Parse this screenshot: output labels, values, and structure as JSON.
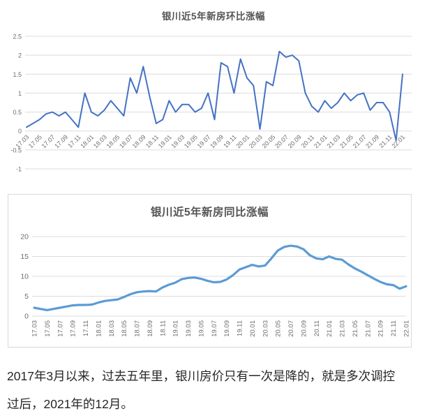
{
  "chart_data": [
    {
      "type": "line",
      "title": "银川近5年新房环比涨幅",
      "x": [
        "17.03",
        "17.04",
        "17.05",
        "17.06",
        "17.07",
        "17.08",
        "17.09",
        "17.10",
        "17.11",
        "17.12",
        "18.01",
        "18.02",
        "18.03",
        "18.04",
        "18.05",
        "18.06",
        "18.07",
        "18.08",
        "18.09",
        "18.10",
        "18.11",
        "18.12",
        "19.01",
        "19.02",
        "19.03",
        "19.04",
        "19.05",
        "19.06",
        "19.07",
        "19.08",
        "19.09",
        "19.10",
        "19.11",
        "19.12",
        "20.01",
        "20.02",
        "20.03",
        "20.04",
        "20.05",
        "20.06",
        "20.07",
        "20.08",
        "20.09",
        "20.10",
        "20.11",
        "20.12",
        "21.01",
        "21.02",
        "21.03",
        "21.04",
        "21.05",
        "21.06",
        "21.07",
        "21.08",
        "21.09",
        "21.10",
        "21.11",
        "21.12",
        "22.01"
      ],
      "x_tick_labels": [
        "17.03",
        "17.05",
        "17.07",
        "17.09",
        "17.11",
        "18.01",
        "18.03",
        "18.05",
        "18.07",
        "18.09",
        "18.11",
        "19.01",
        "19.03",
        "19.05",
        "19.07",
        "19.09",
        "19.11",
        "20.01",
        "20.03",
        "20.05",
        "20.07",
        "20.09",
        "20.11",
        "21.01",
        "21.03",
        "21.05",
        "21.07",
        "21.09",
        "21.11",
        "22.01"
      ],
      "values": [
        0.1,
        0.2,
        0.3,
        0.45,
        0.5,
        0.4,
        0.5,
        0.3,
        0.1,
        1.0,
        0.5,
        0.4,
        0.55,
        0.8,
        0.6,
        0.4,
        1.4,
        1.0,
        1.7,
        0.9,
        0.2,
        0.3,
        0.8,
        0.5,
        0.7,
        0.7,
        0.5,
        0.6,
        1.0,
        0.3,
        1.8,
        1.7,
        1.0,
        1.9,
        1.4,
        1.2,
        0.05,
        1.3,
        1.2,
        2.1,
        1.95,
        2.0,
        1.85,
        1.0,
        0.65,
        0.5,
        0.8,
        0.6,
        0.75,
        1.0,
        0.8,
        0.95,
        1.0,
        0.55,
        0.75,
        0.75,
        0.5,
        -0.25,
        1.5
      ],
      "ylim": [
        -1,
        2.5
      ],
      "yticks": [
        2.5,
        2,
        1.5,
        1,
        0.5,
        0,
        -0.5,
        -1
      ],
      "grid": "horizontal",
      "legend": "none",
      "line_color": "#4472C4"
    },
    {
      "type": "line",
      "title": "银川近5年新房同比涨幅",
      "x": [
        "17.03",
        "17.04",
        "17.05",
        "17.06",
        "17.07",
        "17.08",
        "17.09",
        "17.10",
        "17.11",
        "17.12",
        "18.01",
        "18.02",
        "18.03",
        "18.04",
        "18.05",
        "18.06",
        "18.07",
        "18.08",
        "18.09",
        "18.10",
        "18.11",
        "18.12",
        "19.01",
        "19.02",
        "19.03",
        "19.04",
        "19.05",
        "19.06",
        "19.07",
        "19.08",
        "19.09",
        "19.10",
        "19.11",
        "19.12",
        "20.01",
        "20.02",
        "20.03",
        "20.04",
        "20.05",
        "20.06",
        "20.07",
        "20.08",
        "20.09",
        "20.10",
        "20.11",
        "20.12",
        "21.01",
        "21.02",
        "21.03",
        "21.04",
        "21.05",
        "21.06",
        "21.07",
        "21.08",
        "21.09",
        "21.10",
        "21.11",
        "21.12",
        "22.01"
      ],
      "x_tick_labels": [
        "17.03",
        "17.05",
        "17.07",
        "17.09",
        "17.11",
        "18.01",
        "18.03",
        "18.05",
        "18.07",
        "18.09",
        "18.11",
        "19.01",
        "19.03",
        "19.05",
        "19.07",
        "19.09",
        "19.11",
        "20.01",
        "20.03",
        "20.05",
        "20.07",
        "20.09",
        "20.11",
        "21.01",
        "21.03",
        "21.05",
        "21.07",
        "21.09",
        "21.11",
        "22.01"
      ],
      "values": [
        2.1,
        1.8,
        1.5,
        1.8,
        2.1,
        2.4,
        2.7,
        2.8,
        2.8,
        2.9,
        3.4,
        3.8,
        4.0,
        4.2,
        4.8,
        5.5,
        6.0,
        6.2,
        6.3,
        6.2,
        7.2,
        7.9,
        8.4,
        9.3,
        9.6,
        9.7,
        9.4,
        8.9,
        8.5,
        8.6,
        9.2,
        10.3,
        11.7,
        12.3,
        12.9,
        12.5,
        12.7,
        14.5,
        16.5,
        17.4,
        17.7,
        17.5,
        16.8,
        15.3,
        14.5,
        14.3,
        15.0,
        14.4,
        14.2,
        13.0,
        12.0,
        11.2,
        10.3,
        9.4,
        8.6,
        8.0,
        7.8,
        6.9,
        7.5
      ],
      "ylim": [
        0,
        20
      ],
      "yticks": [
        20,
        15,
        10,
        5,
        0
      ],
      "grid": "horizontal",
      "legend": "none",
      "line_color": "#5B9BD5"
    }
  ],
  "caption": {
    "lines": [
      "2017年3月以来，过去五年里，银川房价只有一次是降的，就是多次调控",
      "过后，2021年的12月。"
    ]
  },
  "colors": {
    "grid": "#dcdcdc",
    "tick_label": "#6e6e6e",
    "title": "#545454",
    "caption_text": "#262626",
    "chart_border": "#d9d9d9",
    "mom_line": "#4472C4",
    "yoy_line": "#5B9BD5"
  }
}
